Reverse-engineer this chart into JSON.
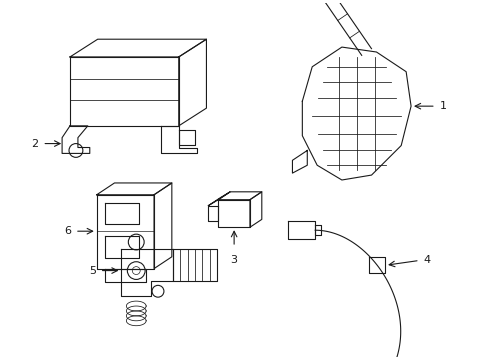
{
  "bg_color": "#ffffff",
  "line_color": "#1a1a1a",
  "line_width": 0.8,
  "fig_width": 4.89,
  "fig_height": 3.6,
  "dpi": 100
}
